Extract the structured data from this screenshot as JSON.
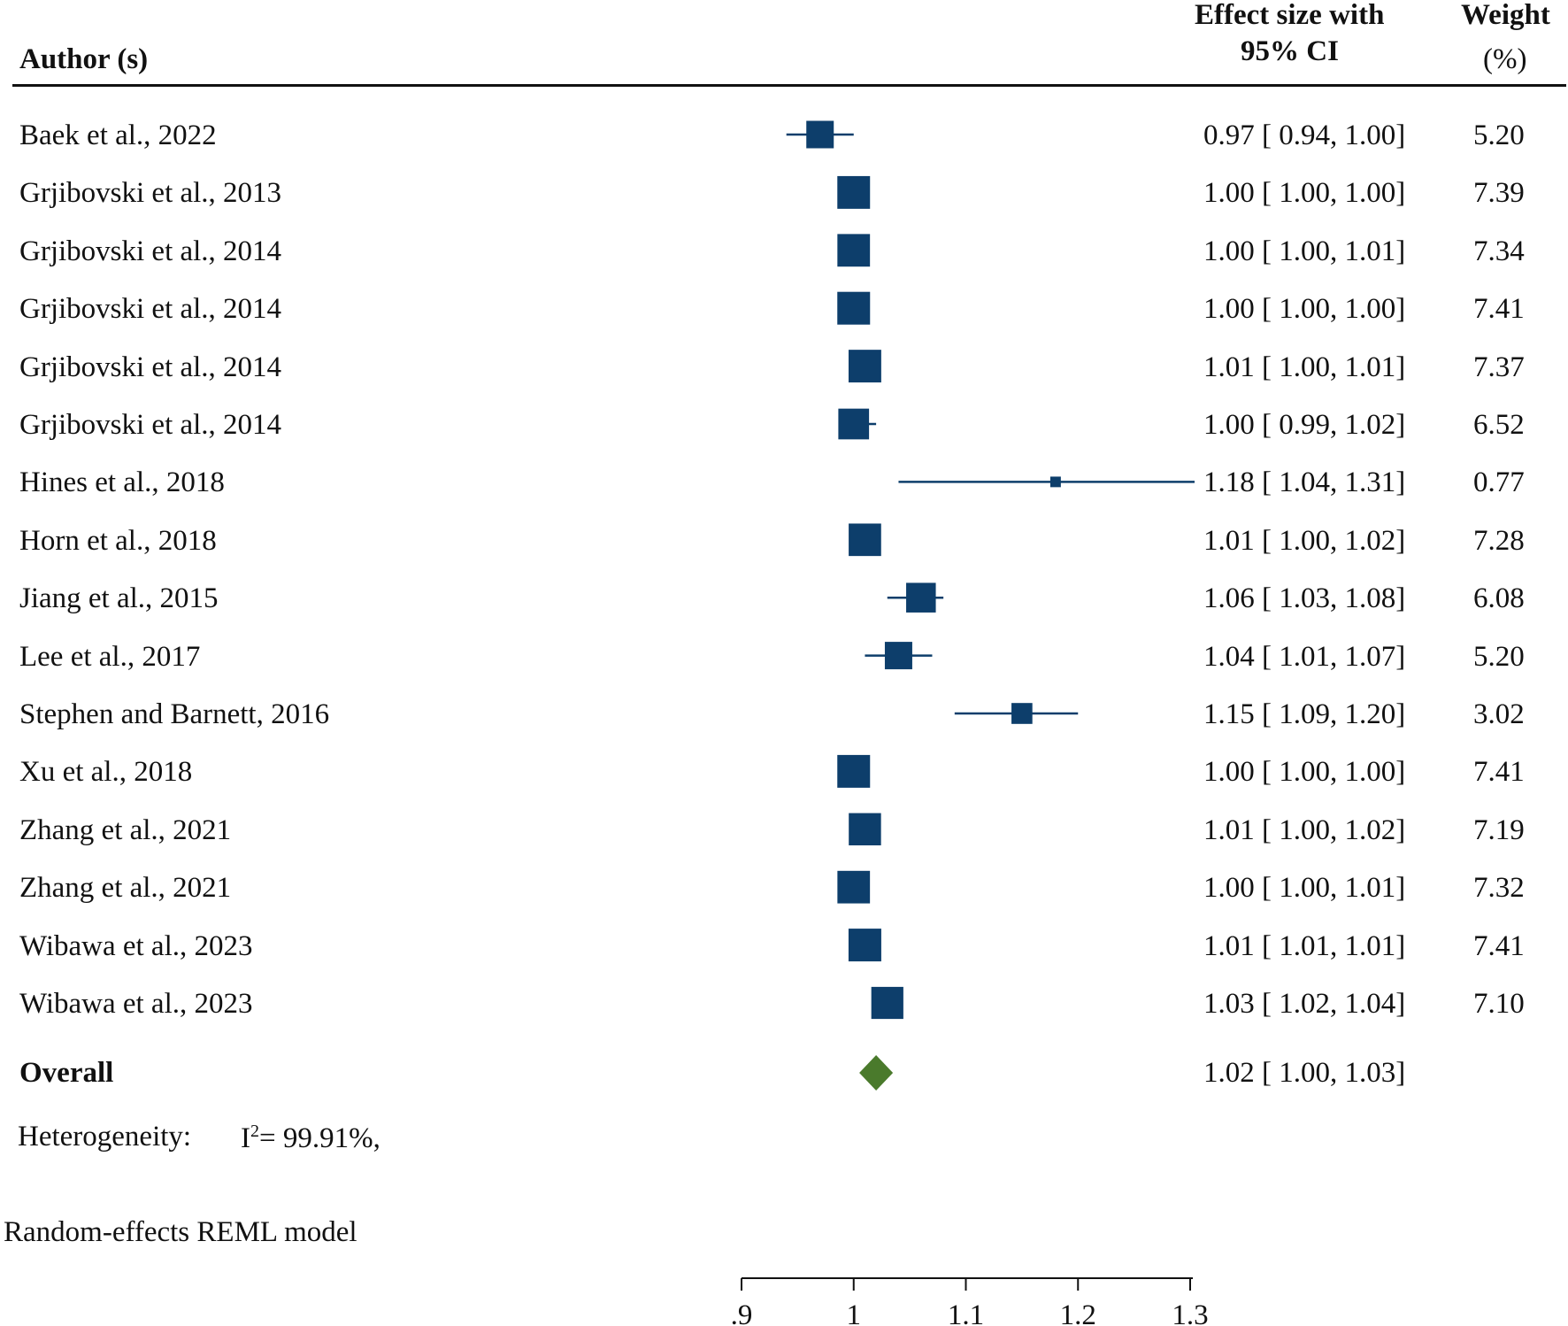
{
  "colors": {
    "marker": "#0d3e6b",
    "overall": "#4a7a2c",
    "text": "#111111"
  },
  "header": {
    "author": "Author (s)",
    "es_line1": "Effect size with",
    "es_line2": "95% CI",
    "weight_line1": "Weight",
    "weight_line2": "(%)"
  },
  "chart_data": {
    "type": "forest",
    "xlim": [
      0.9,
      1.3
    ],
    "x_ticks": [
      ".9",
      "1",
      "1.1",
      "1.2",
      "1.3"
    ],
    "x_tick_values": [
      0.9,
      1.0,
      1.1,
      1.2,
      1.3
    ],
    "studies": [
      {
        "label": "Baek et al., 2022",
        "es": 0.97,
        "lo": 0.94,
        "hi": 1.0,
        "es_text": "0.97 [ 0.94,  1.00]",
        "weight": 5.2,
        "weight_text": "5.20"
      },
      {
        "label": "Grjibovski et al., 2013",
        "es": 1.0,
        "lo": 1.0,
        "hi": 1.0,
        "es_text": "1.00 [ 1.00,  1.00]",
        "weight": 7.39,
        "weight_text": "7.39"
      },
      {
        "label": "Grjibovski et al., 2014",
        "es": 1.0,
        "lo": 1.0,
        "hi": 1.01,
        "es_text": "1.00 [ 1.00,  1.01]",
        "weight": 7.34,
        "weight_text": "7.34"
      },
      {
        "label": "Grjibovski et al., 2014",
        "es": 1.0,
        "lo": 1.0,
        "hi": 1.0,
        "es_text": "1.00 [ 1.00,  1.00]",
        "weight": 7.41,
        "weight_text": "7.41"
      },
      {
        "label": "Grjibovski et al., 2014",
        "es": 1.01,
        "lo": 1.0,
        "hi": 1.01,
        "es_text": "1.01 [ 1.00,  1.01]",
        "weight": 7.37,
        "weight_text": "7.37"
      },
      {
        "label": "Grjibovski et al., 2014",
        "es": 1.0,
        "lo": 0.99,
        "hi": 1.02,
        "es_text": "1.00 [ 0.99,  1.02]",
        "weight": 6.52,
        "weight_text": "6.52"
      },
      {
        "label": "Hines et al., 2018",
        "es": 1.18,
        "lo": 1.04,
        "hi": 1.31,
        "es_text": "1.18 [ 1.04,  1.31]",
        "weight": 0.77,
        "weight_text": "0.77"
      },
      {
        "label": "Horn et al., 2018",
        "es": 1.01,
        "lo": 1.0,
        "hi": 1.02,
        "es_text": "1.01 [ 1.00,  1.02]",
        "weight": 7.28,
        "weight_text": "7.28"
      },
      {
        "label": "Jiang et al., 2015",
        "es": 1.06,
        "lo": 1.03,
        "hi": 1.08,
        "es_text": "1.06 [ 1.03,  1.08]",
        "weight": 6.08,
        "weight_text": "6.08"
      },
      {
        "label": "Lee et al., 2017",
        "es": 1.04,
        "lo": 1.01,
        "hi": 1.07,
        "es_text": "1.04 [ 1.01,  1.07]",
        "weight": 5.2,
        "weight_text": "5.20"
      },
      {
        "label": "Stephen and Barnett, 2016",
        "es": 1.15,
        "lo": 1.09,
        "hi": 1.2,
        "es_text": "1.15 [ 1.09,  1.20]",
        "weight": 3.02,
        "weight_text": "3.02"
      },
      {
        "label": "Xu et al., 2018",
        "es": 1.0,
        "lo": 1.0,
        "hi": 1.0,
        "es_text": "1.00 [ 1.00,  1.00]",
        "weight": 7.41,
        "weight_text": "7.41"
      },
      {
        "label": "Zhang et al., 2021",
        "es": 1.01,
        "lo": 1.0,
        "hi": 1.02,
        "es_text": "1.01 [ 1.00,  1.02]",
        "weight": 7.19,
        "weight_text": "7.19"
      },
      {
        "label": "Zhang et al., 2021",
        "es": 1.0,
        "lo": 1.0,
        "hi": 1.01,
        "es_text": "1.00 [ 1.00,  1.01]",
        "weight": 7.32,
        "weight_text": "7.32"
      },
      {
        "label": "Wibawa et al., 2023",
        "es": 1.01,
        "lo": 1.01,
        "hi": 1.01,
        "es_text": "1.01 [ 1.01,  1.01]",
        "weight": 7.41,
        "weight_text": "7.41"
      },
      {
        "label": "Wibawa et al., 2023",
        "es": 1.03,
        "lo": 1.02,
        "hi": 1.04,
        "es_text": "1.03 [ 1.02,  1.04]",
        "weight": 7.1,
        "weight_text": "7.10"
      }
    ],
    "overall": {
      "label": "Overall",
      "es": 1.02,
      "lo": 1.0,
      "hi": 1.03,
      "es_text": "1.02 [ 1.00,  1.03]"
    },
    "heterogeneity_label": "Heterogeneity:",
    "i2_prefix": "I",
    "i2_sup": "2",
    "i2_value": "= 99.91%,",
    "model_note": "Random-effects REML model"
  }
}
